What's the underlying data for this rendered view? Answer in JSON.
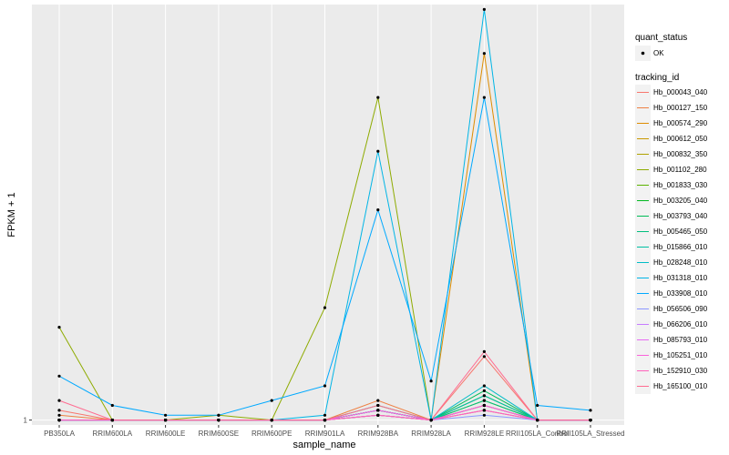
{
  "chart_data": {
    "type": "line",
    "xlabel": "sample_name",
    "ylabel": "FPKM + 1",
    "ylim": [
      0.99,
      1.85
    ],
    "y_ticks": [
      1
    ],
    "y_tick_labels": [
      "1"
    ],
    "categories": [
      "PB350LA",
      "RRIM600LA",
      "RRIM600LE",
      "RRIM600SE",
      "RRIM600PE",
      "RRIM901LA",
      "RRIM928BA",
      "RRIM928LA",
      "RRIM928LE",
      "RRII105LA_Control",
      "RRII105LA_Stressed"
    ],
    "point_color": "#000000",
    "panel_background": "#ebebeb",
    "grid_color": "#ffffff",
    "legend": {
      "position": "right",
      "quant_title": "quant_status",
      "quant_items": [
        "OK"
      ],
      "tracking_title": "tracking_id"
    },
    "series": [
      {
        "name": "Hb_000043_040",
        "color": "#f8766d",
        "values": [
          1.02,
          1.0,
          1.0,
          1.0,
          1.0,
          1.0,
          1.01,
          1.0,
          1.13,
          1.0,
          1.0
        ]
      },
      {
        "name": "Hb_000127_150",
        "color": "#ee8043",
        "values": [
          1.01,
          1.0,
          1.0,
          1.0,
          1.0,
          1.0,
          1.04,
          1.0,
          1.03,
          1.0,
          1.0
        ]
      },
      {
        "name": "Hb_000574_290",
        "color": "#de8c00",
        "values": [
          1.0,
          1.0,
          1.0,
          1.0,
          1.0,
          1.0,
          1.02,
          1.0,
          1.75,
          1.0,
          1.0
        ]
      },
      {
        "name": "Hb_000612_050",
        "color": "#c99800",
        "values": [
          1.0,
          1.0,
          1.0,
          1.0,
          1.0,
          1.0,
          1.01,
          1.0,
          1.02,
          1.0,
          1.0
        ]
      },
      {
        "name": "Hb_000832_350",
        "color": "#b0a200",
        "values": [
          1.0,
          1.0,
          1.0,
          1.0,
          1.0,
          1.0,
          1.01,
          1.0,
          1.03,
          1.0,
          1.0
        ]
      },
      {
        "name": "Hb_001102_280",
        "color": "#8eab00",
        "values": [
          1.19,
          1.0,
          1.0,
          1.01,
          1.0,
          1.23,
          1.66,
          1.0,
          1.03,
          1.0,
          1.0
        ]
      },
      {
        "name": "Hb_001833_030",
        "color": "#5bb300",
        "values": [
          1.0,
          1.0,
          1.0,
          1.0,
          1.0,
          1.0,
          1.02,
          1.0,
          1.04,
          1.0,
          1.0
        ]
      },
      {
        "name": "Hb_003205_040",
        "color": "#00b81f",
        "values": [
          1.0,
          1.0,
          1.0,
          1.0,
          1.0,
          1.0,
          1.02,
          1.0,
          1.05,
          1.0,
          1.0
        ]
      },
      {
        "name": "Hb_003793_040",
        "color": "#00bc56",
        "values": [
          1.0,
          1.0,
          1.0,
          1.0,
          1.0,
          1.0,
          1.03,
          1.0,
          1.06,
          1.0,
          1.0
        ]
      },
      {
        "name": "Hb_005465_050",
        "color": "#00bf7d",
        "values": [
          1.0,
          1.0,
          1.0,
          1.0,
          1.0,
          1.0,
          1.02,
          1.0,
          1.04,
          1.0,
          1.0
        ]
      },
      {
        "name": "Hb_015866_010",
        "color": "#00c0a3",
        "values": [
          1.0,
          1.0,
          1.0,
          1.0,
          1.0,
          1.0,
          1.02,
          1.0,
          1.05,
          1.0,
          1.0
        ]
      },
      {
        "name": "Hb_028248_010",
        "color": "#00bcc6",
        "values": [
          1.0,
          1.0,
          1.0,
          1.0,
          1.0,
          1.0,
          1.02,
          1.0,
          1.07,
          1.0,
          1.0
        ]
      },
      {
        "name": "Hb_031318_010",
        "color": "#00b5e6",
        "values": [
          1.0,
          1.0,
          1.0,
          1.0,
          1.0,
          1.01,
          1.55,
          1.0,
          1.84,
          1.0,
          1.0
        ]
      },
      {
        "name": "Hb_033908_010",
        "color": "#00a9ff",
        "values": [
          1.09,
          1.03,
          1.01,
          1.01,
          1.04,
          1.07,
          1.43,
          1.08,
          1.66,
          1.03,
          1.02
        ]
      },
      {
        "name": "Hb_056506_090",
        "color": "#8c97ff",
        "values": [
          1.0,
          1.0,
          1.0,
          1.0,
          1.0,
          1.0,
          1.01,
          1.0,
          1.01,
          1.0,
          1.0
        ]
      },
      {
        "name": "Hb_066206_010",
        "color": "#c77cff",
        "values": [
          1.0,
          1.0,
          1.0,
          1.0,
          1.0,
          1.0,
          1.02,
          1.0,
          1.03,
          1.0,
          1.0
        ]
      },
      {
        "name": "Hb_085793_010",
        "color": "#e76bf3",
        "values": [
          1.0,
          1.0,
          1.0,
          1.0,
          1.0,
          1.0,
          1.01,
          1.0,
          1.02,
          1.0,
          1.0
        ]
      },
      {
        "name": "Hb_105251_010",
        "color": "#fa62db",
        "values": [
          1.0,
          1.0,
          1.0,
          1.0,
          1.0,
          1.0,
          1.02,
          1.0,
          1.03,
          1.0,
          1.0
        ]
      },
      {
        "name": "Hb_152910_030",
        "color": "#ff62bc",
        "values": [
          1.0,
          1.0,
          1.0,
          1.0,
          1.0,
          1.0,
          1.01,
          1.0,
          1.02,
          1.0,
          1.0
        ]
      },
      {
        "name": "Hb_165100_010",
        "color": "#ff6c91",
        "values": [
          1.04,
          1.0,
          1.0,
          1.0,
          1.0,
          1.0,
          1.03,
          1.0,
          1.14,
          1.0,
          1.0
        ]
      }
    ]
  }
}
